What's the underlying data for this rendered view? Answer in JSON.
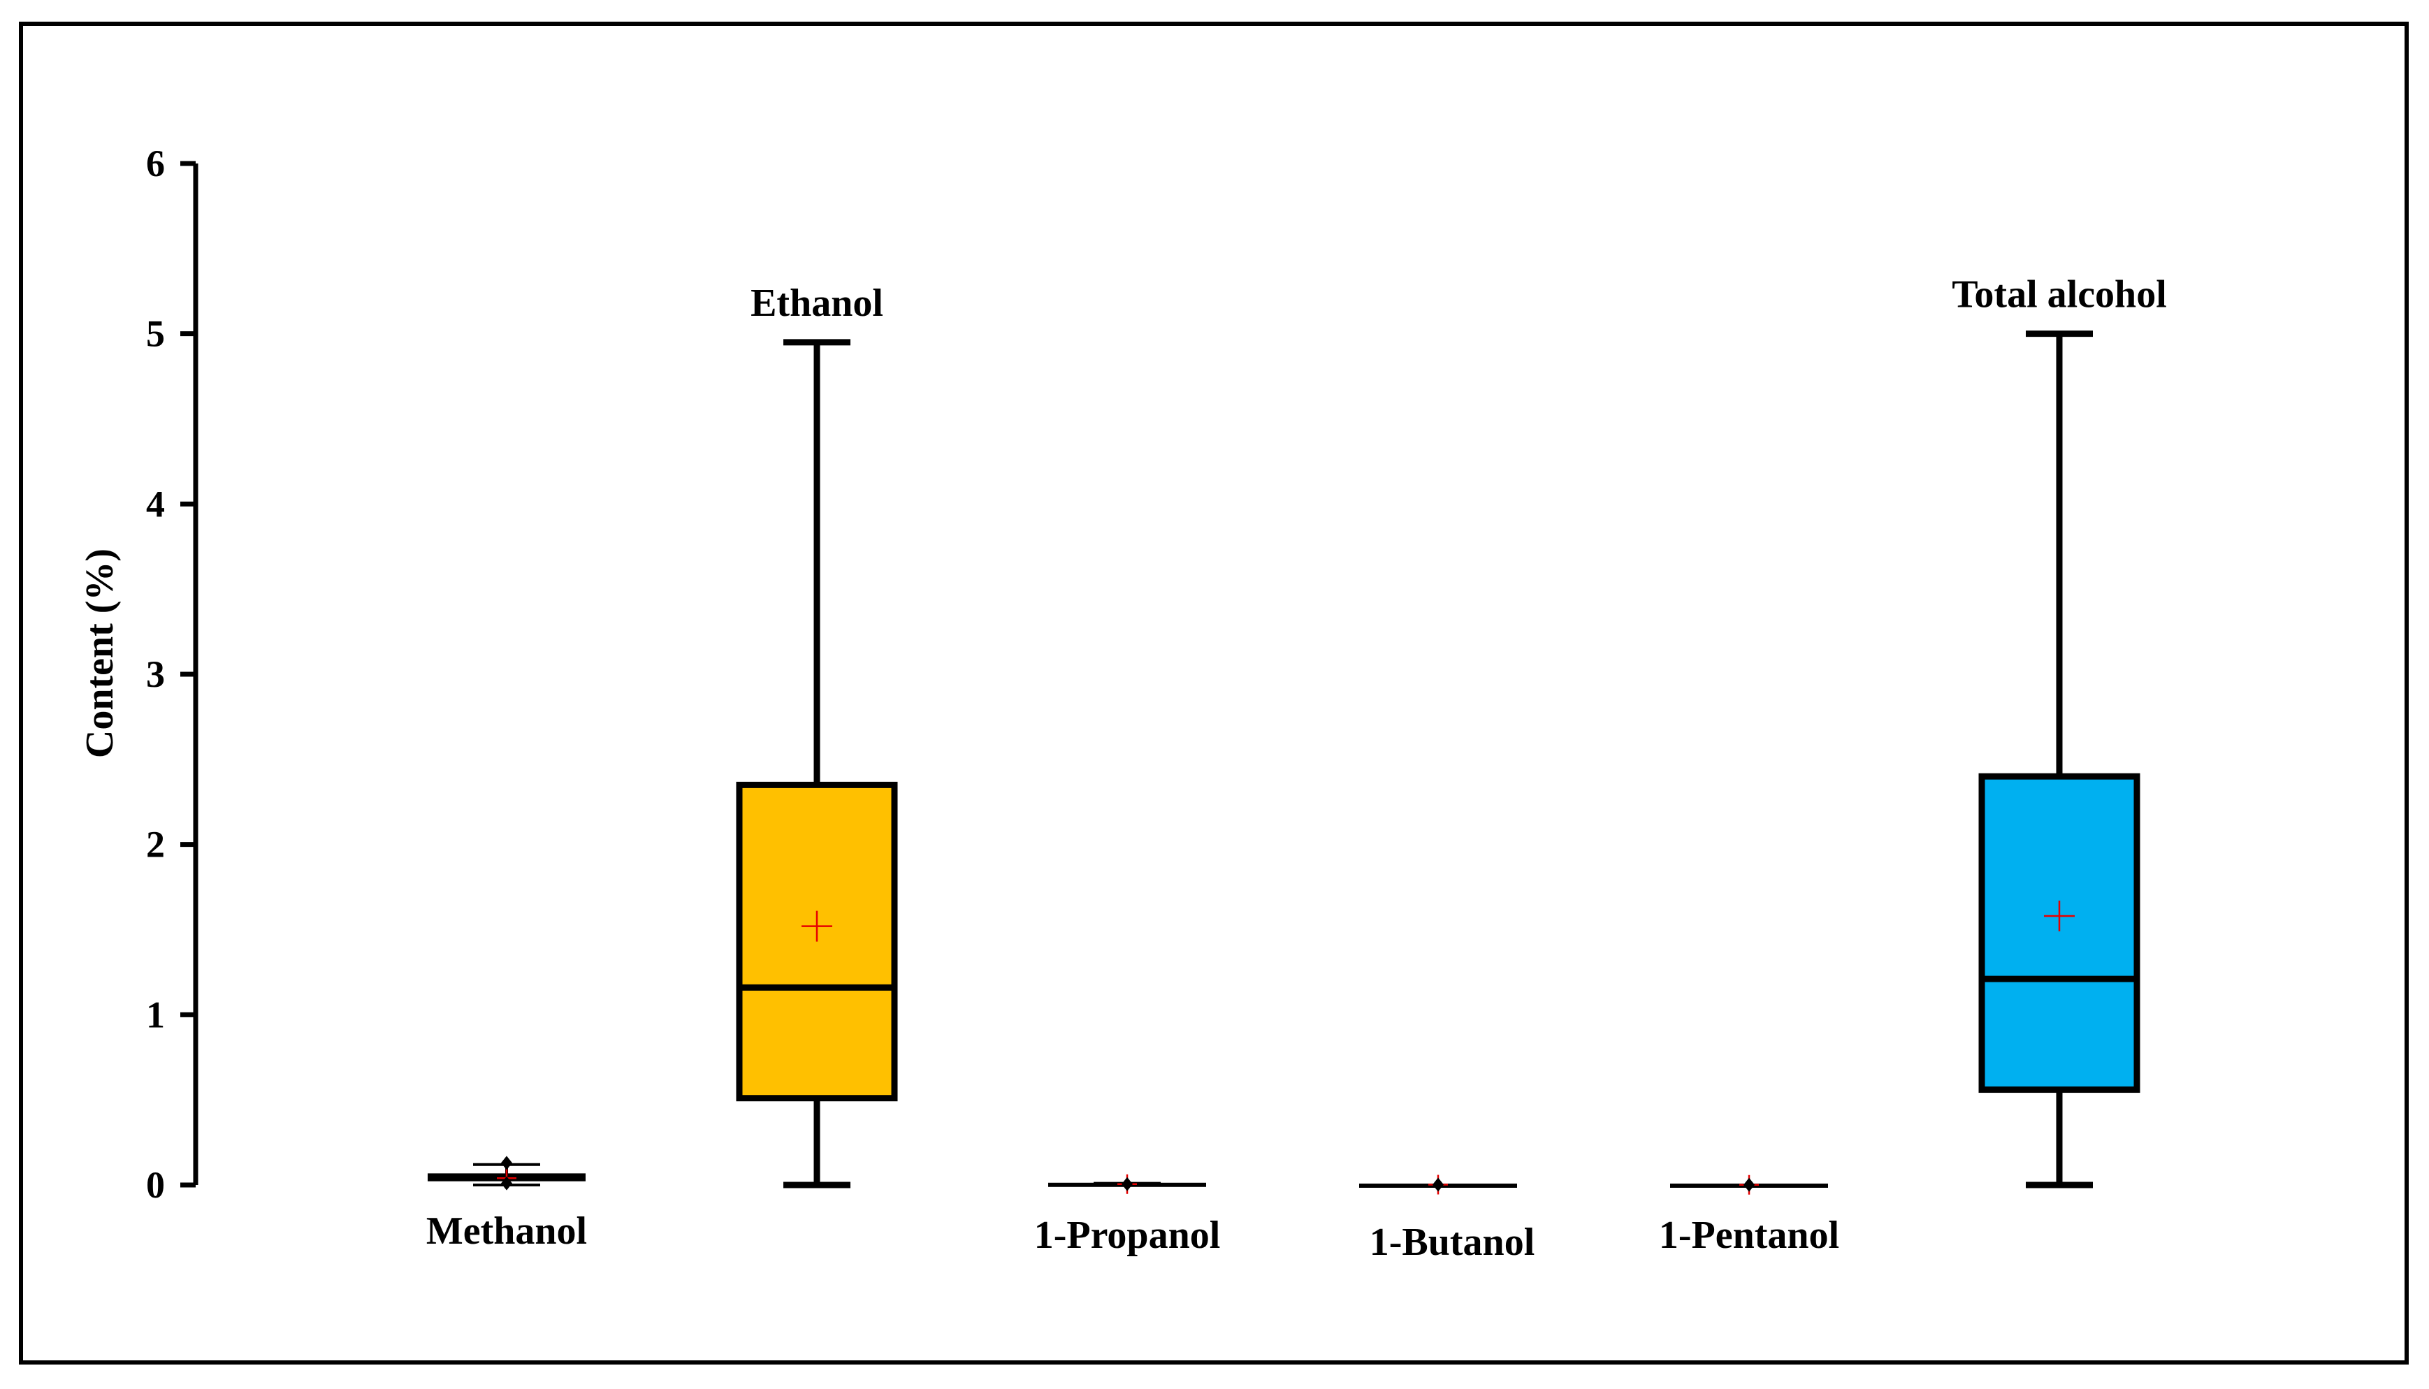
{
  "chart_data": {
    "type": "box",
    "ylabel": "Content (%)",
    "ylim": [
      0,
      6
    ],
    "yticks": [
      0,
      1,
      2,
      3,
      4,
      5,
      6
    ],
    "grid": false,
    "legend": "none",
    "mean_marker_color": "#e60000",
    "series": [
      {
        "name": "Methanol",
        "label_position": "below",
        "color": "#92d050",
        "min": 0.0,
        "q1": 0.03,
        "median": 0.045,
        "q3": 0.06,
        "max": 0.12,
        "mean": 0.04,
        "outliers": [
          0.13,
          0.01
        ]
      },
      {
        "name": "Ethanol",
        "label_position": "above",
        "color": "#ffc000",
        "min": 0.0,
        "q1": 0.51,
        "median": 1.16,
        "q3": 2.35,
        "max": 4.95,
        "mean": 1.52,
        "outliers": []
      },
      {
        "name": "1-Propanol",
        "label_position": "below",
        "color": "#ffffff",
        "min": 0.0,
        "q1": 0.0,
        "median": 0.0,
        "q3": 0.005,
        "max": 0.01,
        "mean": 0.005,
        "outliers": [
          0.005
        ]
      },
      {
        "name": "1-Butanol",
        "label_position": "below",
        "color": "#ffffff",
        "min": 0.0,
        "q1": 0.0,
        "median": 0.0,
        "q3": 0.0,
        "max": 0.0,
        "mean": 0.002,
        "outliers": [
          0.002
        ]
      },
      {
        "name": "1-Pentanol",
        "label_position": "below",
        "color": "#ffffff",
        "min": 0.0,
        "q1": 0.0,
        "median": 0.0,
        "q3": 0.0,
        "max": 0.0,
        "mean": 0.001,
        "outliers": [
          0.001
        ]
      },
      {
        "name": "Total alcohol",
        "label_position": "above",
        "color": "#00b0f0",
        "min": 0.0,
        "q1": 0.56,
        "median": 1.21,
        "q3": 2.4,
        "max": 5.0,
        "mean": 1.58,
        "outliers": []
      }
    ]
  }
}
